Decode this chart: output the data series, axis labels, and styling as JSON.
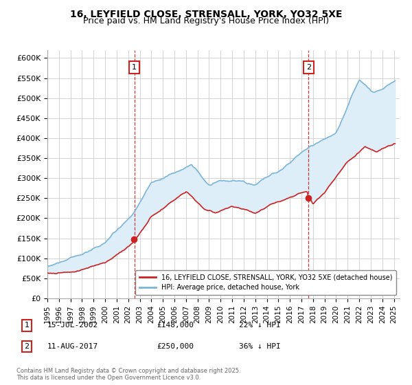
{
  "title": "16, LEYFIELD CLOSE, STRENSALL, YORK, YO32 5XE",
  "subtitle": "Price paid vs. HM Land Registry's House Price Index (HPI)",
  "ylim": [
    0,
    620000
  ],
  "yticks": [
    0,
    50000,
    100000,
    150000,
    200000,
    250000,
    300000,
    350000,
    400000,
    450000,
    500000,
    550000,
    600000
  ],
  "ytick_labels": [
    "£0",
    "£50K",
    "£100K",
    "£150K",
    "£200K",
    "£250K",
    "£300K",
    "£350K",
    "£400K",
    "£450K",
    "£500K",
    "£550K",
    "£600K"
  ],
  "xlim_start": 1995.0,
  "xlim_end": 2025.5,
  "marker1_x": 2002.54,
  "marker1_y": 148000,
  "marker1_label": "1",
  "marker1_date": "15-JUL-2002",
  "marker1_price": "£148,000",
  "marker1_hpi": "22% ↓ HPI",
  "marker2_x": 2017.61,
  "marker2_y": 250000,
  "marker2_label": "2",
  "marker2_date": "11-AUG-2017",
  "marker2_price": "£250,000",
  "marker2_hpi": "36% ↓ HPI",
  "hpi_color": "#7ab4d8",
  "hpi_fill_color": "#ddeef8",
  "price_color": "#cc2222",
  "marker_line_color": "#cc2222",
  "legend_entry1": "16, LEYFIELD CLOSE, STRENSALL, YORK, YO32 5XE (detached house)",
  "legend_entry2": "HPI: Average price, detached house, York",
  "footnote": "Contains HM Land Registry data © Crown copyright and database right 2025.\nThis data is licensed under the Open Government Licence v3.0.",
  "background_color": "#ffffff",
  "grid_color": "#cccccc",
  "title_fontsize": 10,
  "subtitle_fontsize": 9
}
